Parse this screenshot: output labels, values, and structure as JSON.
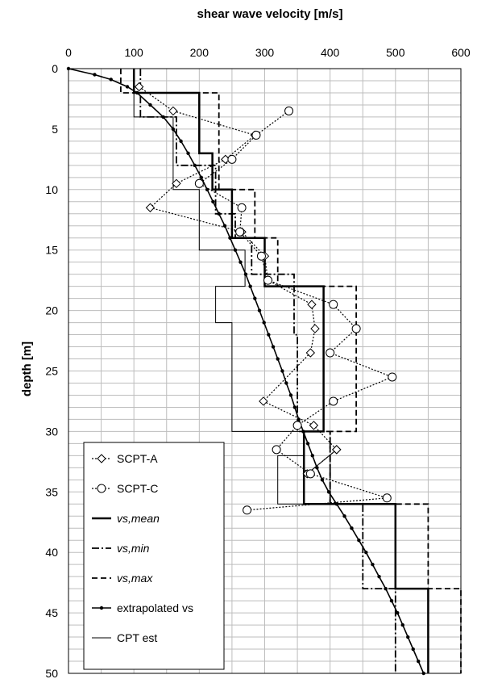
{
  "chart_data": {
    "type": "line",
    "title": "shear wave velocity [m/s]",
    "ylabel": "depth [m]",
    "xlim": [
      0,
      600
    ],
    "ylim": [
      0,
      50
    ],
    "y_inverted": true,
    "x_axis_position": "top",
    "x_ticks": [
      "0",
      "100",
      "200",
      "300",
      "400",
      "500",
      "600"
    ],
    "y_ticks": [
      "0",
      "5",
      "10",
      "15",
      "20",
      "25",
      "30",
      "35",
      "40",
      "45",
      "50"
    ],
    "grid": true,
    "legend_position": "bottom-left",
    "legend": [
      {
        "label": "SCPT-A",
        "italic": false
      },
      {
        "label": "SCPT-C",
        "italic": false
      },
      {
        "label": "vs,mean",
        "italic": true
      },
      {
        "label": "vs,min",
        "italic": true
      },
      {
        "label": "vs,max",
        "italic": true
      },
      {
        "label": "extrapolated vs",
        "italic": false
      },
      {
        "label": "CPT est",
        "italic": false
      }
    ],
    "series": [
      {
        "name": "SCPT-A",
        "style": "dotted",
        "marker": "diamond",
        "points": [
          [
            108,
            1.5
          ],
          [
            160,
            3.5
          ],
          [
            285,
            5.5
          ],
          [
            240,
            7.5
          ],
          [
            165,
            9.5
          ],
          [
            125,
            11.5
          ],
          [
            265,
            13.5
          ],
          [
            300,
            15.5
          ],
          [
            305,
            17.5
          ],
          [
            372,
            19.5
          ],
          [
            377,
            21.5
          ],
          [
            370,
            23.5
          ],
          [
            298,
            27.5
          ],
          [
            375,
            29.5
          ],
          [
            410,
            31.5
          ],
          [
            365,
            33.5
          ],
          [
            410,
            31.5
          ]
        ]
      },
      {
        "name": "SCPT-C",
        "style": "dotted",
        "marker": "circle",
        "points": [
          [
            337,
            3.5
          ],
          [
            287,
            5.5
          ],
          [
            250,
            7.5
          ],
          [
            200,
            9.5
          ],
          [
            265,
            11.5
          ],
          [
            262,
            13.5
          ],
          [
            295,
            15.5
          ],
          [
            305,
            17.5
          ],
          [
            405,
            19.5
          ],
          [
            440,
            21.5
          ],
          [
            400,
            23.5
          ],
          [
            495,
            25.5
          ],
          [
            405,
            27.5
          ],
          [
            350,
            29.5
          ],
          [
            318,
            31.5
          ],
          [
            370,
            33.5
          ],
          [
            487,
            35.5
          ],
          [
            273,
            36.5
          ]
        ]
      },
      {
        "name": "vs,mean",
        "style": "solid-thick",
        "points": [
          [
            100,
            0
          ],
          [
            100,
            2
          ],
          [
            200,
            2
          ],
          [
            200,
            7
          ],
          [
            220,
            7
          ],
          [
            220,
            10
          ],
          [
            250,
            10
          ],
          [
            250,
            14
          ],
          [
            300,
            14
          ],
          [
            300,
            18
          ],
          [
            390,
            18
          ],
          [
            390,
            30
          ],
          [
            360,
            30
          ],
          [
            360,
            36
          ],
          [
            500,
            36
          ],
          [
            500,
            43
          ],
          [
            550,
            43
          ],
          [
            550,
            50
          ]
        ]
      },
      {
        "name": "vs,min",
        "style": "dashdot",
        "points": [
          [
            110,
            0
          ],
          [
            110,
            4
          ],
          [
            165,
            4
          ],
          [
            165,
            8
          ],
          [
            225,
            8
          ],
          [
            225,
            12
          ],
          [
            255,
            12
          ],
          [
            255,
            14
          ],
          [
            280,
            14
          ],
          [
            280,
            17
          ],
          [
            345,
            17
          ],
          [
            345,
            22
          ],
          [
            350,
            22
          ],
          [
            350,
            30
          ],
          [
            400,
            30
          ],
          [
            400,
            36
          ],
          [
            450,
            36
          ],
          [
            450,
            43
          ],
          [
            500,
            43
          ],
          [
            500,
            50
          ]
        ]
      },
      {
        "name": "vs,max",
        "style": "dashed",
        "points": [
          [
            80,
            0
          ],
          [
            80,
            2
          ],
          [
            230,
            2
          ],
          [
            230,
            10
          ],
          [
            285,
            10
          ],
          [
            285,
            14
          ],
          [
            320,
            14
          ],
          [
            320,
            18
          ],
          [
            440,
            18
          ],
          [
            440,
            30
          ],
          [
            400,
            30
          ],
          [
            400,
            36
          ],
          [
            550,
            36
          ],
          [
            550,
            43
          ],
          [
            600,
            43
          ],
          [
            600,
            50
          ]
        ]
      },
      {
        "name": "extrapolated vs",
        "style": "solid-dots",
        "points": [
          [
            0,
            0
          ],
          [
            40,
            0.5
          ],
          [
            65,
            0.9
          ],
          [
            90,
            1.5
          ],
          [
            105,
            2
          ],
          [
            125,
            3
          ],
          [
            145,
            4
          ],
          [
            160,
            5
          ],
          [
            172,
            6
          ],
          [
            183,
            7
          ],
          [
            193,
            8
          ],
          [
            203,
            9
          ],
          [
            212,
            10
          ],
          [
            221,
            11
          ],
          [
            230,
            12
          ],
          [
            239,
            13
          ],
          [
            247,
            14
          ],
          [
            255,
            15
          ],
          [
            263,
            16
          ],
          [
            271,
            17
          ],
          [
            278,
            18
          ],
          [
            285,
            19
          ],
          [
            292,
            20
          ],
          [
            299,
            21
          ],
          [
            306,
            22
          ],
          [
            313,
            23
          ],
          [
            320,
            24
          ],
          [
            327,
            25
          ],
          [
            333,
            26
          ],
          [
            340,
            27
          ],
          [
            346,
            28
          ],
          [
            352,
            29
          ],
          [
            359,
            30
          ],
          [
            366,
            31
          ],
          [
            373,
            32
          ],
          [
            380,
            33
          ],
          [
            388,
            34
          ],
          [
            398,
            35
          ],
          [
            410,
            36
          ],
          [
            422,
            37
          ],
          [
            433,
            38
          ],
          [
            444,
            39
          ],
          [
            455,
            40
          ],
          [
            465,
            41
          ],
          [
            475,
            42
          ],
          [
            485,
            43
          ],
          [
            494,
            44
          ],
          [
            503,
            45
          ],
          [
            511,
            46
          ],
          [
            519,
            47
          ],
          [
            527,
            48
          ],
          [
            535,
            49
          ],
          [
            543,
            50
          ]
        ]
      },
      {
        "name": "CPT est",
        "style": "solid-thin",
        "points": [
          [
            100,
            0
          ],
          [
            100,
            4
          ],
          [
            160,
            4
          ],
          [
            160,
            10
          ],
          [
            200,
            10
          ],
          [
            200,
            15
          ],
          [
            270,
            15
          ],
          [
            270,
            18
          ],
          [
            225,
            18
          ],
          [
            225,
            21
          ],
          [
            250,
            21
          ],
          [
            250,
            30
          ],
          [
            360,
            30
          ],
          [
            360,
            32
          ],
          [
            320,
            32
          ],
          [
            320,
            36
          ],
          [
            360,
            36
          ]
        ]
      }
    ]
  }
}
